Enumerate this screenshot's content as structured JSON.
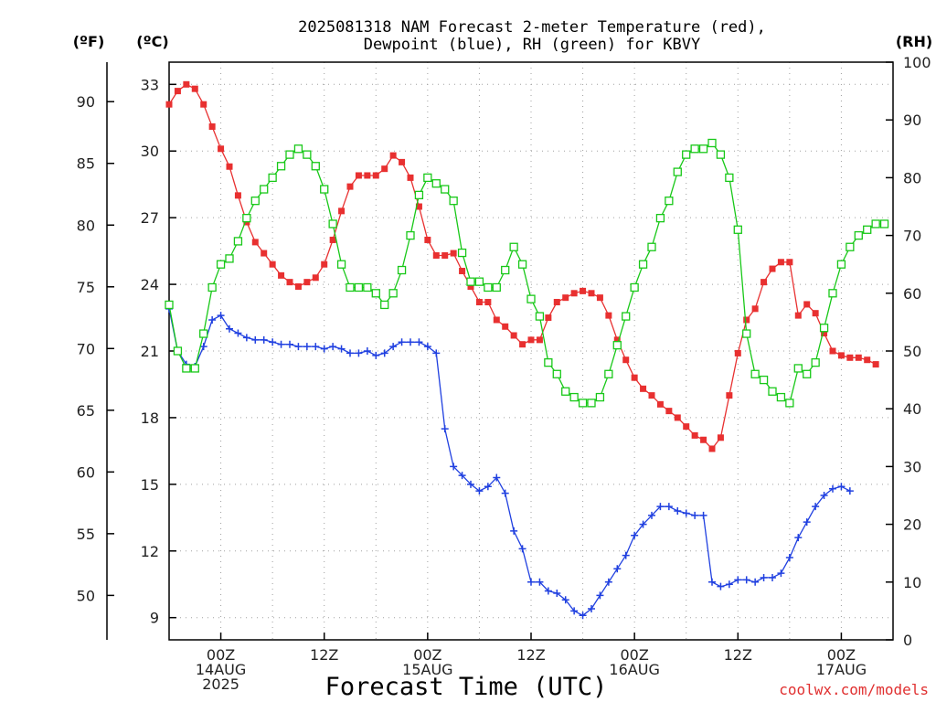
{
  "chart_data": {
    "type": "line",
    "title_line1": "2025081318 NAM Forecast 2-meter Temperature (red),",
    "title_line2": "Dewpoint (blue), RH (green) for KBVY",
    "unit_f": "(ºF)",
    "unit_c": "(ºC)",
    "unit_rh": "(RH)",
    "xlabel": "Forecast Time (UTC)",
    "credit": "coolwx.com/models",
    "x_ticks": [
      {
        "lines": [
          "00Z",
          "14AUG",
          "2025"
        ],
        "h": 6
      },
      {
        "lines": [
          "12Z"
        ],
        "h": 18
      },
      {
        "lines": [
          "00Z",
          "15AUG"
        ],
        "h": 30
      },
      {
        "lines": [
          "12Z"
        ],
        "h": 42
      },
      {
        "lines": [
          "00Z",
          "16AUG"
        ],
        "h": 54
      },
      {
        "lines": [
          "12Z"
        ],
        "h": 66
      },
      {
        "lines": [
          "00Z",
          "17AUG"
        ],
        "h": 78
      }
    ],
    "x_range_hours": [
      0,
      84
    ],
    "x_unit": "hours from 2025-08-13 18Z",
    "c_ticks": [
      9,
      12,
      15,
      18,
      21,
      24,
      27,
      30,
      33
    ],
    "f_ticks": [
      50,
      55,
      60,
      65,
      70,
      75,
      80,
      85,
      90
    ],
    "rh_ticks": [
      0,
      10,
      20,
      30,
      40,
      50,
      60,
      70,
      80,
      90,
      100
    ],
    "c_range": [
      8,
      34
    ],
    "rh_range": [
      0,
      100
    ],
    "grid": true,
    "colors": {
      "temperature": "#e83030",
      "dewpoint": "#2040e0",
      "rh": "#18c818",
      "grid": "#a0a0a0"
    },
    "series": [
      {
        "key": "temperature",
        "marker": "filled-square",
        "values": [
          32.1,
          32.7,
          33.0,
          32.8,
          32.1,
          31.1,
          30.1,
          29.3,
          28.0,
          26.8,
          25.9,
          25.4,
          24.9,
          24.4,
          24.1,
          23.9,
          24.1,
          24.3,
          24.9,
          26.0,
          27.3,
          28.4,
          28.9,
          28.9,
          28.9,
          29.2,
          29.8,
          29.5,
          28.8,
          27.5,
          26.0,
          25.3,
          25.3,
          25.4,
          24.6,
          23.9,
          23.2,
          23.2,
          22.4,
          22.1,
          21.7,
          21.3,
          21.5,
          21.5,
          22.5,
          23.2,
          23.4,
          23.6,
          23.7,
          23.6,
          23.4,
          22.6,
          21.5,
          20.6,
          19.8,
          19.3,
          19.0,
          18.6,
          18.3,
          18.0,
          17.6,
          17.2,
          17.0,
          16.6,
          17.1,
          19.0,
          20.9,
          22.4,
          22.9,
          24.1,
          24.7,
          25.0,
          25.0,
          22.6,
          23.1,
          22.7,
          21.8,
          21.0,
          20.8,
          20.7,
          20.7,
          20.6,
          20.4
        ],
        "hours": [
          0,
          1,
          2,
          3,
          4,
          5,
          6,
          7,
          8,
          9,
          10,
          11,
          12,
          13,
          14,
          15,
          16,
          17,
          18,
          19,
          20,
          21,
          22,
          23,
          24,
          25,
          26,
          27,
          28,
          29,
          30,
          31,
          32,
          33,
          34,
          35,
          36,
          37,
          38,
          39,
          40,
          41,
          42,
          43,
          44,
          45,
          46,
          47,
          48,
          49,
          50,
          51,
          52,
          53,
          54,
          55,
          56,
          57,
          58,
          59,
          60,
          61,
          62,
          63,
          64,
          65,
          66,
          67,
          68,
          69,
          70,
          71,
          72,
          73,
          74,
          75,
          76,
          77,
          78,
          79,
          80,
          81,
          82
        ]
      },
      {
        "key": "dewpoint",
        "marker": "plus",
        "values": [
          22.9,
          21.0,
          20.4,
          20.3,
          21.2,
          22.4,
          22.6,
          22.0,
          21.8,
          21.6,
          21.5,
          21.5,
          21.4,
          21.3,
          21.3,
          21.2,
          21.2,
          21.2,
          21.1,
          21.2,
          21.1,
          20.9,
          20.9,
          21.0,
          20.8,
          20.9,
          21.2,
          21.4,
          21.4,
          21.4,
          21.2,
          20.9,
          17.5,
          15.8,
          15.4,
          15.0,
          14.7,
          14.9,
          15.3,
          14.6,
          12.9,
          12.1,
          10.6,
          10.6,
          10.2,
          10.1,
          9.8,
          9.3,
          9.1,
          9.4,
          10.0,
          10.6,
          11.2,
          11.8,
          12.7,
          13.2,
          13.6,
          14.0,
          14.0,
          13.8,
          13.7,
          13.6,
          13.6,
          10.6,
          10.4,
          10.5,
          10.7,
          10.7,
          10.6,
          10.8,
          10.8,
          11.0,
          11.7,
          12.6,
          13.3,
          14.0,
          14.5,
          14.8,
          14.9,
          14.7
        ],
        "hours": [
          0,
          1,
          2,
          3,
          4,
          5,
          6,
          7,
          8,
          9,
          10,
          11,
          12,
          13,
          14,
          15,
          16,
          17,
          18,
          19,
          20,
          21,
          22,
          23,
          24,
          25,
          26,
          27,
          28,
          29,
          30,
          31,
          32,
          33,
          34,
          35,
          36,
          37,
          38,
          39,
          40,
          41,
          42,
          43,
          44,
          45,
          46,
          47,
          48,
          49,
          50,
          51,
          52,
          53,
          54,
          55,
          56,
          57,
          58,
          59,
          60,
          61,
          62,
          63,
          64,
          65,
          66,
          67,
          68,
          69,
          70,
          71,
          72,
          73,
          74,
          75,
          76,
          77,
          78,
          79
        ]
      },
      {
        "key": "rh",
        "marker": "open-square",
        "values": [
          58,
          50,
          47,
          47,
          53,
          61,
          65,
          66,
          69,
          73,
          76,
          78,
          80,
          82,
          84,
          85,
          84,
          82,
          78,
          72,
          65,
          61,
          61,
          61,
          60,
          58,
          60,
          64,
          70,
          77,
          80,
          79,
          78,
          76,
          67,
          62,
          62,
          61,
          61,
          64,
          68,
          65,
          59,
          56,
          48,
          46,
          43,
          42,
          41,
          41,
          42,
          46,
          51,
          56,
          61,
          65,
          68,
          73,
          76,
          81,
          84,
          85,
          85,
          86,
          84,
          80,
          71,
          53,
          46,
          45,
          43,
          42,
          41,
          47,
          46,
          48,
          54,
          60,
          65,
          68,
          70,
          71,
          72,
          72
        ],
        "hours": [
          0,
          1,
          2,
          3,
          4,
          5,
          6,
          7,
          8,
          9,
          10,
          11,
          12,
          13,
          14,
          15,
          16,
          17,
          18,
          19,
          20,
          21,
          22,
          23,
          24,
          25,
          26,
          27,
          28,
          29,
          30,
          31,
          32,
          33,
          34,
          35,
          36,
          37,
          38,
          39,
          40,
          41,
          42,
          43,
          44,
          45,
          46,
          47,
          48,
          49,
          50,
          51,
          52,
          53,
          54,
          55,
          56,
          57,
          58,
          59,
          60,
          61,
          62,
          63,
          64,
          65,
          66,
          67,
          68,
          69,
          70,
          71,
          72,
          73,
          74,
          75,
          76,
          77,
          78,
          79,
          80,
          81,
          82,
          83
        ]
      }
    ]
  }
}
